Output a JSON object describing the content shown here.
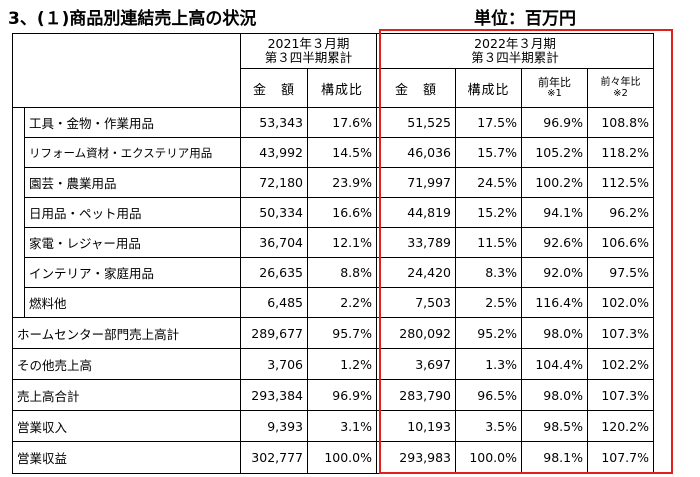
{
  "title": "3、(１)商品別連結売上高の状況",
  "unit": "単位：百万円",
  "header": {
    "period_2021_line1": "2021年３月期",
    "period_2021_line2": "第３四半期累計",
    "period_2022_line1": "2022年３月期",
    "period_2022_line2": "第３四半期累計",
    "amount": "金　額",
    "ratio": "構成比",
    "yoy": "前年比",
    "yoy_note": "※1",
    "yoy2": "前々年比",
    "yoy2_note": "※2"
  },
  "rows": [
    {
      "label": "工具・金物・作業用品",
      "a2021": "53,343",
      "r2021": "17.6%",
      "a2022": "51,525",
      "r2022": "17.5%",
      "yoy": "96.9%",
      "yoy2": "108.8%"
    },
    {
      "label": "リフォーム資材・エクステリア用品",
      "a2021": "43,992",
      "r2021": "14.5%",
      "a2022": "46,036",
      "r2022": "15.7%",
      "yoy": "105.2%",
      "yoy2": "118.2%"
    },
    {
      "label": "園芸・農業用品",
      "a2021": "72,180",
      "r2021": "23.9%",
      "a2022": "71,997",
      "r2022": "24.5%",
      "yoy": "100.2%",
      "yoy2": "112.5%"
    },
    {
      "label": "日用品・ペット用品",
      "a2021": "50,334",
      "r2021": "16.6%",
      "a2022": "44,819",
      "r2022": "15.2%",
      "yoy": "94.1%",
      "yoy2": "96.2%"
    },
    {
      "label": "家電・レジャー用品",
      "a2021": "36,704",
      "r2021": "12.1%",
      "a2022": "33,789",
      "r2022": "11.5%",
      "yoy": "92.6%",
      "yoy2": "106.6%"
    },
    {
      "label": "インテリア・家庭用品",
      "a2021": "26,635",
      "r2021": "8.8%",
      "a2022": "24,420",
      "r2022": "8.3%",
      "yoy": "92.0%",
      "yoy2": "97.5%"
    },
    {
      "label": "燃料他",
      "a2021": "6,485",
      "r2021": "2.2%",
      "a2022": "7,503",
      "r2022": "2.5%",
      "yoy": "116.4%",
      "yoy2": "102.0%"
    },
    {
      "label": "ホームセンター部門売上高計",
      "a2021": "289,677",
      "r2021": "95.7%",
      "a2022": "280,092",
      "r2022": "95.2%",
      "yoy": "98.0%",
      "yoy2": "107.3%"
    },
    {
      "label": "その他売上高",
      "a2021": "3,706",
      "r2021": "1.2%",
      "a2022": "3,697",
      "r2022": "1.3%",
      "yoy": "104.4%",
      "yoy2": "102.2%"
    },
    {
      "label": "売上高合計",
      "a2021": "293,384",
      "r2021": "96.9%",
      "a2022": "283,790",
      "r2022": "96.5%",
      "yoy": "98.0%",
      "yoy2": "107.3%"
    },
    {
      "label": "営業収入",
      "a2021": "9,393",
      "r2021": "3.1%",
      "a2022": "10,193",
      "r2022": "3.5%",
      "yoy": "98.5%",
      "yoy2": "120.2%"
    },
    {
      "label": "営業収益",
      "a2021": "302,777",
      "r2021": "100.0%",
      "a2022": "293,983",
      "r2022": "100.0%",
      "yoy": "98.1%",
      "yoy2": "107.7%"
    }
  ],
  "highlight_color": "#e0201c"
}
